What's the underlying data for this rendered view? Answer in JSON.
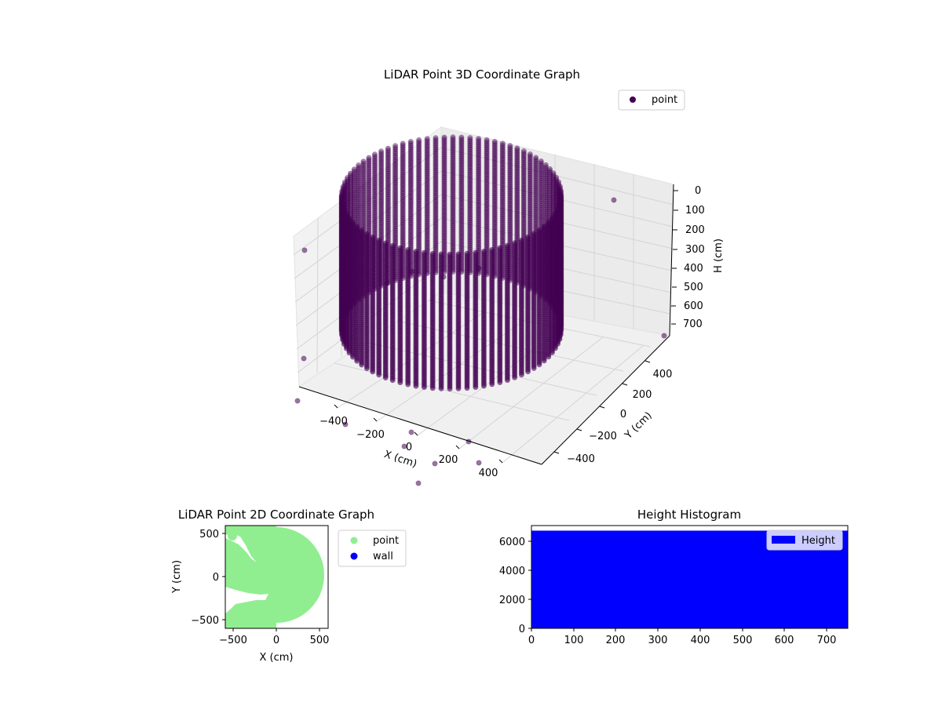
{
  "chart_data": [
    {
      "type": "scatter",
      "subtype": "3d",
      "title": "LiDAR Point 3D Coordinate Graph",
      "xlabel": "X (cm)",
      "ylabel": "Y (cm)",
      "zlabel": "H (cm)",
      "x_ticks": [
        "−400",
        "−200",
        "0",
        "200",
        "400"
      ],
      "y_ticks": [
        "−400",
        "−200",
        "0",
        "200",
        "400"
      ],
      "z_ticks": [
        "0",
        "100",
        "200",
        "300",
        "400",
        "500",
        "600",
        "700"
      ],
      "xlim": [
        -550,
        550
      ],
      "ylim": [
        -550,
        550
      ],
      "zlim": [
        0,
        750
      ],
      "z_inverted": true,
      "shape": "cylindrical wall of points, radius ≈ 450 cm, height 0–700 cm, with sparse outliers",
      "series": [
        {
          "name": "point",
          "color": "#440154"
        }
      ],
      "legend": [
        "point"
      ],
      "legend_position": "upper-right",
      "grid": true
    },
    {
      "type": "scatter",
      "title": "LiDAR Point 2D Coordinate Graph",
      "xlabel": "X (cm)",
      "ylabel": "Y (cm)",
      "x_ticks": [
        "−500",
        "0",
        "500"
      ],
      "y_ticks": [
        "500",
        "0",
        "−500"
      ],
      "xlim": [
        -580,
        580
      ],
      "ylim": [
        -600,
        600
      ],
      "shape": "filled disc of points, radius ≈ 530 cm, with gaps on the left side",
      "series": [
        {
          "name": "point",
          "color": "#90ee90"
        },
        {
          "name": "wall",
          "color": "#0000ff"
        }
      ],
      "legend": [
        "point",
        "wall"
      ],
      "legend_position": "outside-right",
      "grid": false
    },
    {
      "type": "bar",
      "subtype": "histogram",
      "title": "Height Histogram",
      "x_ticks": [
        "0",
        "100",
        "200",
        "300",
        "400",
        "500",
        "600",
        "700"
      ],
      "y_ticks": [
        "0",
        "2000",
        "4000",
        "6000"
      ],
      "xlim": [
        0,
        750
      ],
      "ylim": [
        0,
        7100
      ],
      "bins": [
        {
          "x_start": 0,
          "x_end": 750,
          "count": 6750
        }
      ],
      "series": [
        {
          "name": "Height",
          "color": "#0000ff"
        }
      ],
      "legend": [
        "Height"
      ],
      "legend_position": "upper-right",
      "grid": false
    }
  ]
}
